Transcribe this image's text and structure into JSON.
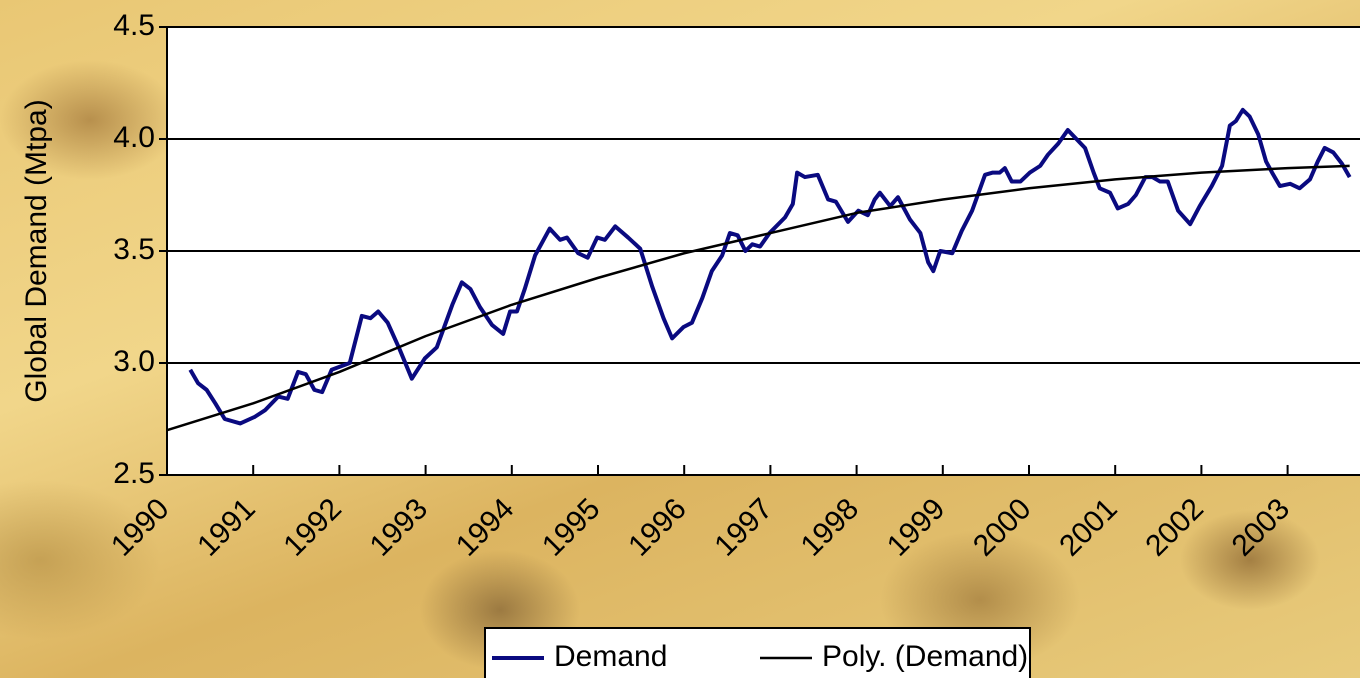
{
  "chart_data": {
    "type": "line",
    "y_axis_label": "Global Demand (Mtpa)",
    "xlim": [
      1990,
      2004
    ],
    "ylim": [
      2.5,
      4.5
    ],
    "xticks": [
      1990,
      1991,
      1992,
      1993,
      1994,
      1995,
      1996,
      1997,
      1998,
      1999,
      2000,
      2001,
      2002,
      2003
    ],
    "yticks": [
      {
        "value": 2.5,
        "label": "2.5"
      },
      {
        "value": 3,
        "label": "3.0"
      },
      {
        "value": 3.5,
        "label": "3.5"
      },
      {
        "value": 4,
        "label": "4.0"
      },
      {
        "value": 4.5,
        "label": "4.5"
      }
    ],
    "grid": true,
    "legend": "bottom",
    "series": [
      {
        "name": "Demand",
        "color": "#0a0a80",
        "x": [
          1990.27,
          1990.36,
          1990.46,
          1990.56,
          1990.67,
          1990.85,
          1991.02,
          1991.14,
          1991.29,
          1991.4,
          1991.52,
          1991.61,
          1991.71,
          1991.8,
          1991.91,
          1992.12,
          1992.26,
          1992.36,
          1992.45,
          1992.56,
          1992.7,
          1992.84,
          1992.99,
          1993.13,
          1993.31,
          1993.42,
          1993.52,
          1993.63,
          1993.77,
          1993.9,
          1993.98,
          1994.06,
          1994.15,
          1994.27,
          1994.44,
          1994.56,
          1994.64,
          1994.77,
          1994.88,
          1994.99,
          1995.08,
          1995.2,
          1995.35,
          1995.49,
          1995.63,
          1995.76,
          1995.86,
          1995.99,
          1996.09,
          1996.21,
          1996.32,
          1996.44,
          1996.53,
          1996.62,
          1996.71,
          1996.79,
          1996.88,
          1996.99,
          1997.17,
          1997.26,
          1997.31,
          1997.4,
          1997.55,
          1997.67,
          1997.76,
          1997.9,
          1998.02,
          1998.13,
          1998.21,
          1998.27,
          1998.39,
          1998.48,
          1998.62,
          1998.74,
          1998.83,
          1998.89,
          1998.97,
          1999.11,
          1999.22,
          1999.34,
          1999.49,
          1999.58,
          1999.66,
          1999.72,
          1999.8,
          1999.9,
          2000.01,
          2000.13,
          2000.22,
          2000.34,
          2000.45,
          2000.55,
          2000.65,
          2000.75,
          2000.82,
          2000.94,
          2001.03,
          2001.15,
          2001.24,
          2001.35,
          2001.43,
          2001.52,
          2001.61,
          2001.73,
          2001.87,
          2001.98,
          2002.12,
          2002.24,
          2002.33,
          2002.4,
          2002.48,
          2002.56,
          2002.66,
          2002.75,
          2002.82,
          2002.91,
          2003.03,
          2003.14,
          2003.26,
          2003.35,
          2003.43,
          2003.53,
          2003.63,
          2003.72
        ],
        "values": [
          2.97,
          2.91,
          2.88,
          2.82,
          2.75,
          2.73,
          2.76,
          2.79,
          2.85,
          2.84,
          2.96,
          2.95,
          2.88,
          2.87,
          2.97,
          3.0,
          3.21,
          3.2,
          3.23,
          3.18,
          3.06,
          2.93,
          3.02,
          3.07,
          3.26,
          3.36,
          3.33,
          3.25,
          3.17,
          3.13,
          3.23,
          3.23,
          3.33,
          3.48,
          3.6,
          3.55,
          3.56,
          3.49,
          3.47,
          3.56,
          3.55,
          3.61,
          3.56,
          3.51,
          3.34,
          3.2,
          3.11,
          3.16,
          3.18,
          3.29,
          3.41,
          3.48,
          3.58,
          3.57,
          3.5,
          3.53,
          3.52,
          3.58,
          3.65,
          3.71,
          3.85,
          3.83,
          3.84,
          3.73,
          3.72,
          3.63,
          3.68,
          3.66,
          3.73,
          3.76,
          3.7,
          3.74,
          3.64,
          3.58,
          3.45,
          3.41,
          3.5,
          3.49,
          3.59,
          3.68,
          3.84,
          3.85,
          3.85,
          3.87,
          3.81,
          3.81,
          3.85,
          3.88,
          3.93,
          3.98,
          4.04,
          4.0,
          3.96,
          3.85,
          3.78,
          3.76,
          3.69,
          3.71,
          3.75,
          3.83,
          3.83,
          3.81,
          3.81,
          3.68,
          3.62,
          3.7,
          3.79,
          3.88,
          4.06,
          4.08,
          4.13,
          4.1,
          4.02,
          3.9,
          3.85,
          3.79,
          3.8,
          3.78,
          3.82,
          3.9,
          3.96,
          3.94,
          3.89,
          3.83
        ]
      },
      {
        "name": "Poly. (Demand)",
        "color": "#000000",
        "x": [
          1990,
          1991,
          1992,
          1993,
          1994,
          1995,
          1996,
          1997,
          1998,
          1999,
          2000,
          2001,
          2002,
          2003,
          2003.72
        ],
        "values": [
          2.7,
          2.82,
          2.96,
          3.12,
          3.26,
          3.38,
          3.49,
          3.58,
          3.67,
          3.73,
          3.78,
          3.82,
          3.85,
          3.87,
          3.88
        ]
      }
    ]
  }
}
